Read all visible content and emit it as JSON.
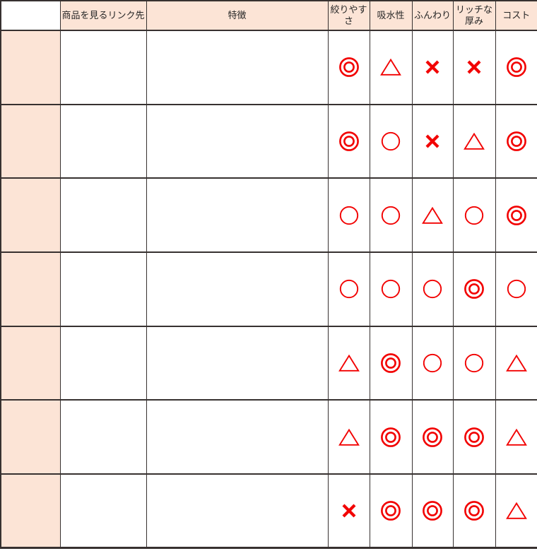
{
  "table": {
    "headers": [
      "",
      "商品を見るリンク先",
      "特徴",
      "絞りやすさ",
      "吸水性",
      "ふんわり",
      "リッチな厚み",
      "コスト"
    ],
    "rating_columns": [
      "絞りやすさ",
      "吸水性",
      "ふんわり",
      "リッチな厚み",
      "コスト"
    ],
    "rating_symbols": {
      "double-circle": "◎",
      "circle": "○",
      "triangle": "△",
      "cross": "×"
    },
    "rows": [
      {
        "name": "",
        "link": "",
        "features": "",
        "ratings": [
          "double-circle",
          "triangle",
          "cross",
          "cross",
          "double-circle"
        ]
      },
      {
        "name": "",
        "link": "",
        "features": "",
        "ratings": [
          "double-circle",
          "circle",
          "cross",
          "triangle",
          "double-circle"
        ]
      },
      {
        "name": "",
        "link": "",
        "features": "",
        "ratings": [
          "circle",
          "circle",
          "triangle",
          "circle",
          "double-circle"
        ]
      },
      {
        "name": "",
        "link": "",
        "features": "",
        "ratings": [
          "circle",
          "circle",
          "circle",
          "double-circle",
          "circle"
        ]
      },
      {
        "name": "",
        "link": "",
        "features": "",
        "ratings": [
          "triangle",
          "double-circle",
          "circle",
          "circle",
          "triangle"
        ]
      },
      {
        "name": "",
        "link": "",
        "features": "",
        "ratings": [
          "triangle",
          "double-circle",
          "double-circle",
          "double-circle",
          "triangle"
        ]
      },
      {
        "name": "",
        "link": "",
        "features": "",
        "ratings": [
          "cross",
          "double-circle",
          "double-circle",
          "double-circle",
          "triangle"
        ]
      }
    ]
  },
  "colors": {
    "rating_red": "#f20000",
    "header_bg": "#fce4d6",
    "label_column_bg": "#fce4d6",
    "border": "#373130",
    "header_text": "#262626"
  }
}
